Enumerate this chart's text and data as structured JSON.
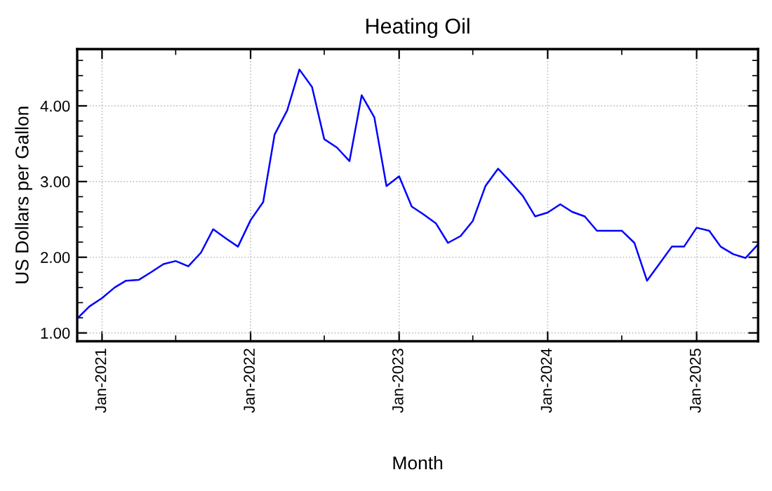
{
  "chart_data": {
    "type": "line",
    "title": "Heating Oil",
    "xlabel": "Month",
    "ylabel": "US Dollars per Gallon",
    "x": [
      "2020-11",
      "2020-12",
      "2021-01",
      "2021-02",
      "2021-03",
      "2021-04",
      "2021-05",
      "2021-06",
      "2021-07",
      "2021-08",
      "2021-09",
      "2021-10",
      "2021-11",
      "2021-12",
      "2022-01",
      "2022-02",
      "2022-03",
      "2022-04",
      "2022-05",
      "2022-06",
      "2022-07",
      "2022-08",
      "2022-09",
      "2022-10",
      "2022-11",
      "2022-12",
      "2023-01",
      "2023-02",
      "2023-03",
      "2023-04",
      "2023-05",
      "2023-06",
      "2023-07",
      "2023-08",
      "2023-09",
      "2023-10",
      "2023-11",
      "2023-12",
      "2024-01",
      "2024-02",
      "2024-03",
      "2024-04",
      "2024-05",
      "2024-06",
      "2024-07",
      "2024-08",
      "2024-09",
      "2024-10",
      "2024-11",
      "2024-12",
      "2025-01",
      "2025-02",
      "2025-03",
      "2025-04",
      "2025-05",
      "2025-06"
    ],
    "series": [
      {
        "color": "#0000ff",
        "values": [
          1.19,
          1.35,
          1.46,
          1.6,
          1.69,
          1.7,
          1.8,
          1.91,
          1.95,
          1.88,
          2.06,
          2.37,
          2.25,
          2.14,
          2.49,
          2.73,
          3.62,
          3.94,
          4.48,
          4.25,
          3.56,
          3.45,
          3.27,
          4.14,
          3.85,
          2.94,
          3.07,
          2.67,
          2.57,
          2.45,
          2.19,
          2.28,
          2.48,
          2.94,
          3.17,
          3.0,
          2.81,
          2.54,
          2.59,
          2.7,
          2.6,
          2.54,
          2.35,
          2.35,
          2.35,
          2.19,
          1.69,
          1.91,
          2.14,
          2.14,
          2.39,
          2.35,
          2.14,
          2.04,
          1.99,
          2.17
        ]
      }
    ],
    "xlim": [
      "2020-11-01",
      "2025-06-01"
    ],
    "xticks": [
      {
        "value": "2021-01-01",
        "label": "Jan-2021"
      },
      {
        "value": "2022-01-01",
        "label": "Jan-2022"
      },
      {
        "value": "2023-01-01",
        "label": "Jan-2023"
      },
      {
        "value": "2024-01-01",
        "label": "Jan-2024"
      },
      {
        "value": "2025-01-01",
        "label": "Jan-2025"
      }
    ],
    "ylim": [
      0.89,
      4.75
    ],
    "yticks": [
      {
        "value": 1,
        "label": "1.00"
      },
      {
        "value": 2,
        "label": "2.00"
      },
      {
        "value": 3,
        "label": "3.00"
      },
      {
        "value": 4,
        "label": "4.00"
      }
    ],
    "grid": true,
    "marker": "none",
    "line_style": "solid"
  }
}
